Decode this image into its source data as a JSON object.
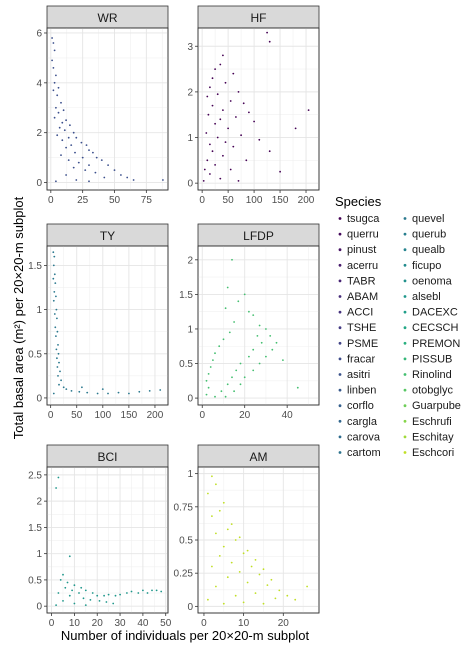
{
  "chart_data": {
    "type": "scatter",
    "layout": "faceted 3 rows x 2 columns",
    "xlabel": "Number of individuals per 20×20-m subplot",
    "ylabel": "Total basal area (m²) per 20×20-m subplot",
    "legend": {
      "title": "Species",
      "placement": "right",
      "entries": [
        {
          "label": "tsugca",
          "color": "#440154"
        },
        {
          "label": "querru",
          "color": "#450a5c"
        },
        {
          "label": "pinust",
          "color": "#471365"
        },
        {
          "label": "acerru",
          "color": "#481b6d"
        },
        {
          "label": "TABR",
          "color": "#482475"
        },
        {
          "label": "ABAM",
          "color": "#472c7a"
        },
        {
          "label": "ACCI",
          "color": "#46337e"
        },
        {
          "label": "TSHE",
          "color": "#443b84"
        },
        {
          "label": "PSME",
          "color": "#414487"
        },
        {
          "label": "fracar",
          "color": "#3e4c8a"
        },
        {
          "label": "asitri",
          "color": "#3b528b"
        },
        {
          "label": "linben",
          "color": "#38598c"
        },
        {
          "label": "corflo",
          "color": "#35608d"
        },
        {
          "label": "cargla",
          "color": "#32678e"
        },
        {
          "label": "carova",
          "color": "#2f6c8e"
        },
        {
          "label": "cartom",
          "color": "#2c738e"
        },
        {
          "label": "quevel",
          "color": "#2a788e"
        },
        {
          "label": "querub",
          "color": "#277e8e"
        },
        {
          "label": "quealb",
          "color": "#25848e"
        },
        {
          "label": "ficupo",
          "color": "#228b8d"
        },
        {
          "label": "oenoma",
          "color": "#21918c"
        },
        {
          "label": "alsebl",
          "color": "#1f978b"
        },
        {
          "label": "DACEXC",
          "color": "#1f9e89"
        },
        {
          "label": "CECSCH",
          "color": "#22a785"
        },
        {
          "label": "PREMON",
          "color": "#2ab07f"
        },
        {
          "label": "PISSUB",
          "color": "#35b779"
        },
        {
          "label": "Rinolind",
          "color": "#44bf70"
        },
        {
          "label": "otobglyc",
          "color": "#58c765"
        },
        {
          "label": "Guarpube",
          "color": "#6ece58"
        },
        {
          "label": "Eschrufi",
          "color": "#85d54a"
        },
        {
          "label": "Eschitay",
          "color": "#a0da39"
        },
        {
          "label": "Eschcori",
          "color": "#c0df25"
        }
      ]
    },
    "facets": [
      {
        "label": "WR",
        "color": "#3b4f8c",
        "xlim": [
          -3,
          92
        ],
        "ylim": [
          -0.3,
          6.2
        ],
        "xticks": [
          0,
          25,
          50,
          75
        ],
        "yticks": [
          0,
          2,
          4,
          6
        ],
        "points": [
          [
            1,
            5.8
          ],
          [
            2,
            5.6
          ],
          [
            3,
            5.3
          ],
          [
            1,
            4.9
          ],
          [
            2,
            4.6
          ],
          [
            4,
            4.3
          ],
          [
            3,
            4.0
          ],
          [
            6,
            3.8
          ],
          [
            2,
            3.7
          ],
          [
            5,
            3.5
          ],
          [
            8,
            3.2
          ],
          [
            4,
            3.0
          ],
          [
            10,
            2.9
          ],
          [
            6,
            2.8
          ],
          [
            3,
            2.6
          ],
          [
            12,
            2.5
          ],
          [
            9,
            2.4
          ],
          [
            15,
            2.3
          ],
          [
            7,
            2.2
          ],
          [
            11,
            2.1
          ],
          [
            18,
            2.0
          ],
          [
            5,
            1.9
          ],
          [
            14,
            1.8
          ],
          [
            20,
            1.8
          ],
          [
            9,
            1.7
          ],
          [
            24,
            1.6
          ],
          [
            16,
            1.5
          ],
          [
            28,
            1.5
          ],
          [
            12,
            1.4
          ],
          [
            30,
            1.3
          ],
          [
            19,
            1.2
          ],
          [
            33,
            1.2
          ],
          [
            8,
            1.1
          ],
          [
            25,
            1.0
          ],
          [
            36,
            1.0
          ],
          [
            14,
            0.9
          ],
          [
            40,
            0.9
          ],
          [
            22,
            0.8
          ],
          [
            30,
            0.7
          ],
          [
            45,
            0.7
          ],
          [
            18,
            0.6
          ],
          [
            27,
            0.5
          ],
          [
            50,
            0.5
          ],
          [
            35,
            0.4
          ],
          [
            12,
            0.3
          ],
          [
            55,
            0.3
          ],
          [
            42,
            0.2
          ],
          [
            60,
            0.2
          ],
          [
            20,
            0.1
          ],
          [
            65,
            0.1
          ],
          [
            88,
            0.1
          ],
          [
            4,
            0.05
          ],
          [
            30,
            0.05
          ]
        ]
      },
      {
        "label": "HF",
        "color": "#440154",
        "xlim": [
          -8,
          225
        ],
        "ylim": [
          -0.15,
          3.4
        ],
        "xticks": [
          0,
          50,
          100,
          150,
          200
        ],
        "yticks": [
          0,
          1,
          2,
          3
        ],
        "points": [
          [
            125,
            3.3
          ],
          [
            130,
            3.1
          ],
          [
            40,
            2.8
          ],
          [
            35,
            2.6
          ],
          [
            25,
            2.5
          ],
          [
            60,
            2.4
          ],
          [
            20,
            2.3
          ],
          [
            45,
            2.2
          ],
          [
            15,
            2.1
          ],
          [
            70,
            2.0
          ],
          [
            30,
            1.95
          ],
          [
            10,
            1.9
          ],
          [
            55,
            1.8
          ],
          [
            80,
            1.75
          ],
          [
            20,
            1.7
          ],
          [
            40,
            1.6
          ],
          [
            90,
            1.55
          ],
          [
            12,
            1.5
          ],
          [
            65,
            1.45
          ],
          [
            35,
            1.4
          ],
          [
            100,
            1.35
          ],
          [
            25,
            1.3
          ],
          [
            50,
            1.2
          ],
          [
            180,
            1.2
          ],
          [
            8,
            1.1
          ],
          [
            75,
            1.05
          ],
          [
            30,
            1.0
          ],
          [
            110,
            0.95
          ],
          [
            45,
            0.9
          ],
          [
            15,
            0.85
          ],
          [
            60,
            0.8
          ],
          [
            20,
            0.7
          ],
          [
            130,
            0.7
          ],
          [
            40,
            0.6
          ],
          [
            10,
            0.5
          ],
          [
            85,
            0.5
          ],
          [
            25,
            0.4
          ],
          [
            5,
            0.3
          ],
          [
            55,
            0.3
          ],
          [
            150,
            0.25
          ],
          [
            15,
            0.2
          ],
          [
            35,
            0.1
          ],
          [
            3,
            0.05
          ],
          [
            70,
            0.05
          ],
          [
            205,
            1.6
          ]
        ]
      },
      {
        "label": "TY",
        "color": "#2a788e",
        "xlim": [
          -7,
          225
        ],
        "ylim": [
          -0.08,
          1.72
        ],
        "xticks": [
          0,
          50,
          100,
          150,
          200
        ],
        "yticks": [
          0,
          0.5,
          1.0,
          1.5
        ],
        "points": [
          [
            5,
            1.65
          ],
          [
            7,
            1.6
          ],
          [
            6,
            1.5
          ],
          [
            8,
            1.4
          ],
          [
            5,
            1.35
          ],
          [
            9,
            1.3
          ],
          [
            7,
            1.2
          ],
          [
            10,
            1.15
          ],
          [
            6,
            1.1
          ],
          [
            11,
            1.0
          ],
          [
            8,
            0.95
          ],
          [
            12,
            0.9
          ],
          [
            9,
            0.8
          ],
          [
            13,
            0.75
          ],
          [
            10,
            0.7
          ],
          [
            14,
            0.6
          ],
          [
            11,
            0.55
          ],
          [
            15,
            0.5
          ],
          [
            12,
            0.45
          ],
          [
            16,
            0.4
          ],
          [
            13,
            0.35
          ],
          [
            18,
            0.3
          ],
          [
            14,
            0.25
          ],
          [
            20,
            0.2
          ],
          [
            16,
            0.15
          ],
          [
            25,
            0.12
          ],
          [
            30,
            0.1
          ],
          [
            40,
            0.08
          ],
          [
            55,
            0.07
          ],
          [
            70,
            0.06
          ],
          [
            90,
            0.05
          ],
          [
            110,
            0.05
          ],
          [
            130,
            0.06
          ],
          [
            150,
            0.05
          ],
          [
            170,
            0.07
          ],
          [
            190,
            0.08
          ],
          [
            210,
            0.09
          ],
          [
            60,
            0.12
          ],
          [
            100,
            0.1
          ],
          [
            6,
            0.05
          ]
        ]
      },
      {
        "label": "LFDP",
        "color": "#44bf70",
        "xlim": [
          -2,
          55
        ],
        "ylim": [
          -0.1,
          2.2
        ],
        "xticks": [
          0,
          20,
          40
        ],
        "yticks": [
          0,
          0.5,
          1.0,
          1.5,
          2.0
        ],
        "points": [
          [
            14,
            2.0
          ],
          [
            12,
            1.6
          ],
          [
            20,
            1.5
          ],
          [
            17,
            1.4
          ],
          [
            11,
            1.3
          ],
          [
            22,
            1.25
          ],
          [
            24,
            1.2
          ],
          [
            15,
            1.1
          ],
          [
            27,
            1.05
          ],
          [
            30,
            1.0
          ],
          [
            13,
            0.95
          ],
          [
            26,
            0.9
          ],
          [
            32,
            0.9
          ],
          [
            10,
            0.85
          ],
          [
            28,
            0.8
          ],
          [
            35,
            0.8
          ],
          [
            8,
            0.75
          ],
          [
            24,
            0.7
          ],
          [
            33,
            0.7
          ],
          [
            6,
            0.65
          ],
          [
            22,
            0.6
          ],
          [
            30,
            0.6
          ],
          [
            5,
            0.55
          ],
          [
            18,
            0.5
          ],
          [
            27,
            0.5
          ],
          [
            4,
            0.45
          ],
          [
            16,
            0.4
          ],
          [
            24,
            0.4
          ],
          [
            3,
            0.35
          ],
          [
            14,
            0.3
          ],
          [
            20,
            0.3
          ],
          [
            2,
            0.25
          ],
          [
            12,
            0.2
          ],
          [
            18,
            0.2
          ],
          [
            3,
            0.15
          ],
          [
            9,
            0.1
          ],
          [
            15,
            0.1
          ],
          [
            2,
            0.05
          ],
          [
            6,
            0.02
          ],
          [
            11,
            0.02
          ],
          [
            45,
            0.15
          ],
          [
            38,
            0.55
          ]
        ]
      },
      {
        "label": "BCI",
        "color": "#1f978b",
        "xlim": [
          -2,
          51
        ],
        "ylim": [
          -0.13,
          2.65
        ],
        "xticks": [
          0,
          10,
          20,
          30,
          40,
          50
        ],
        "yticks": [
          0,
          0.5,
          1.0,
          1.5,
          2.0,
          2.5
        ],
        "points": [
          [
            3,
            2.45
          ],
          [
            2,
            2.25
          ],
          [
            8,
            0.95
          ],
          [
            5,
            0.6
          ],
          [
            4,
            0.5
          ],
          [
            7,
            0.45
          ],
          [
            10,
            0.4
          ],
          [
            6,
            0.35
          ],
          [
            13,
            0.35
          ],
          [
            9,
            0.3
          ],
          [
            15,
            0.3
          ],
          [
            3,
            0.25
          ],
          [
            12,
            0.25
          ],
          [
            18,
            0.25
          ],
          [
            20,
            0.2
          ],
          [
            8,
            0.2
          ],
          [
            23,
            0.2
          ],
          [
            25,
            0.22
          ],
          [
            14,
            0.15
          ],
          [
            28,
            0.2
          ],
          [
            30,
            0.22
          ],
          [
            5,
            0.1
          ],
          [
            17,
            0.12
          ],
          [
            33,
            0.25
          ],
          [
            35,
            0.28
          ],
          [
            21,
            0.1
          ],
          [
            38,
            0.25
          ],
          [
            10,
            0.05
          ],
          [
            24,
            0.08
          ],
          [
            40,
            0.3
          ],
          [
            42,
            0.25
          ],
          [
            27,
            0.05
          ],
          [
            44,
            0.3
          ],
          [
            46,
            0.3
          ],
          [
            2,
            0.02
          ],
          [
            15,
            0.02
          ],
          [
            48,
            0.28
          ]
        ]
      },
      {
        "label": "AM",
        "color": "#c0df25",
        "xlim": [
          -1.5,
          29
        ],
        "ylim": [
          -0.05,
          1.05
        ],
        "xticks": [
          0,
          10,
          20
        ],
        "yticks": [
          0,
          0.25,
          0.5,
          0.75,
          1.0
        ],
        "points": [
          [
            2,
            0.98
          ],
          [
            3,
            0.92
          ],
          [
            1,
            0.85
          ],
          [
            5,
            0.78
          ],
          [
            4,
            0.72
          ],
          [
            2,
            0.68
          ],
          [
            7,
            0.62
          ],
          [
            6,
            0.58
          ],
          [
            3,
            0.55
          ],
          [
            9,
            0.52
          ],
          [
            8,
            0.5
          ],
          [
            5,
            0.45
          ],
          [
            11,
            0.42
          ],
          [
            10,
            0.4
          ],
          [
            4,
            0.38
          ],
          [
            13,
            0.35
          ],
          [
            7,
            0.33
          ],
          [
            12,
            0.3
          ],
          [
            2,
            0.3
          ],
          [
            15,
            0.28
          ],
          [
            9,
            0.26
          ],
          [
            14,
            0.24
          ],
          [
            6,
            0.22
          ],
          [
            17,
            0.2
          ],
          [
            11,
            0.18
          ],
          [
            16,
            0.16
          ],
          [
            3,
            0.15
          ],
          [
            19,
            0.12
          ],
          [
            13,
            0.1
          ],
          [
            8,
            0.08
          ],
          [
            21,
            0.08
          ],
          [
            18,
            0.06
          ],
          [
            1,
            0.05
          ],
          [
            23,
            0.05
          ],
          [
            10,
            0.03
          ],
          [
            26,
            0.15
          ],
          [
            5,
            0.02
          ],
          [
            15,
            0.02
          ]
        ]
      }
    ]
  }
}
